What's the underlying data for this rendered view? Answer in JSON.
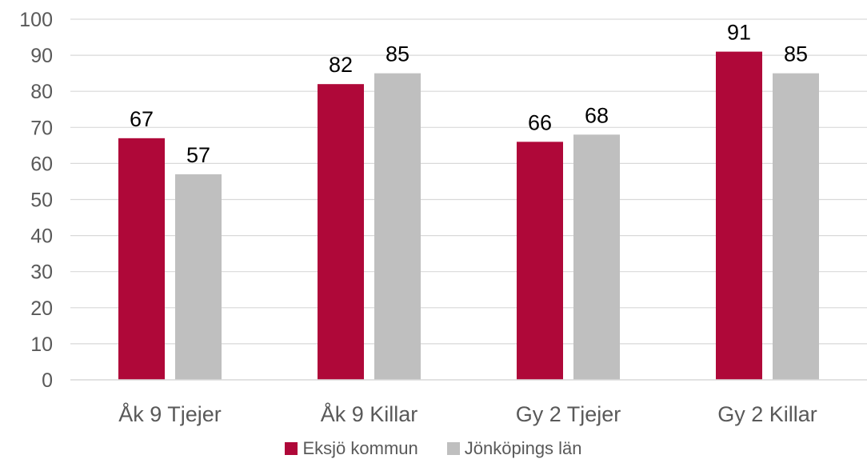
{
  "chart_data": {
    "type": "bar",
    "categories": [
      "Åk 9 Tjejer",
      "Åk 9 Killar",
      "Gy 2 Tjejer",
      "Gy 2 Killar"
    ],
    "series": [
      {
        "name": "Eksjö kommun",
        "color": "#AF0839",
        "values": [
          67,
          82,
          66,
          91
        ],
        "data_labels": [
          "67",
          "82",
          "66",
          "91"
        ]
      },
      {
        "name": "Jönköpings län",
        "color": "#BFBFBF",
        "values": [
          57,
          85,
          68,
          85
        ],
        "data_labels": [
          "57",
          "85",
          "68",
          "85"
        ]
      }
    ],
    "ylim": [
      0,
      100
    ],
    "yticks": [
      "0",
      "10",
      "20",
      "30",
      "40",
      "50",
      "60",
      "70",
      "80",
      "90",
      "100"
    ],
    "grid": true,
    "legend_position": "bottom"
  }
}
